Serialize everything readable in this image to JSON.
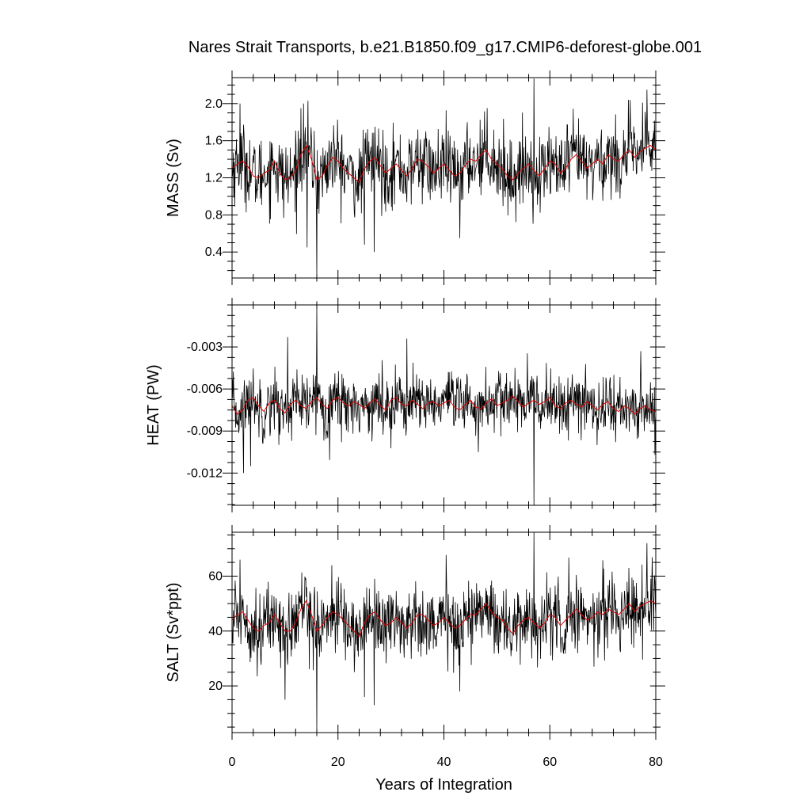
{
  "title": "Nares Strait Transports, b.e21.B1850.f09_g17.CMIP6-deforest-globe.001",
  "colors": {
    "raw": "#000000",
    "smooth": "#e00000",
    "axis": "#000000",
    "background": "#ffffff"
  },
  "chart_data": [
    {
      "type": "line",
      "id": "mass",
      "ylabel": "MASS (Sv)",
      "xlabel": "",
      "xlim": [
        0,
        80
      ],
      "ylim": [
        0.12,
        2.28
      ],
      "xticks": [
        0,
        20,
        40,
        60,
        80
      ],
      "xtick_labels": [
        "",
        "",
        "",
        "",
        ""
      ],
      "yticks": [
        0.4,
        0.8,
        1.2,
        1.6,
        2.0
      ],
      "ytick_labels": [
        "0.4",
        "0.8",
        "1.2",
        "1.6",
        "2.0"
      ],
      "grid": false,
      "series": [
        {
          "role": "monthly",
          "color": "#000000",
          "samples_per_year": 12,
          "x_start": 0,
          "x_end": 80,
          "mean": 1.33,
          "std": 0.24,
          "extremes": [
            [
              14.2,
              0.45
            ],
            [
              16.0,
              0.13
            ],
            [
              25.0,
              0.48
            ],
            [
              26.8,
              0.4
            ],
            [
              57.0,
              2.27
            ],
            [
              43.0,
              0.55
            ],
            [
              78.3,
              2.15
            ],
            [
              13.0,
              1.95
            ],
            [
              1.5,
              2.0
            ]
          ]
        },
        {
          "role": "annual-mean",
          "color": "#e00000",
          "x": [
            0,
            1,
            2,
            3,
            4,
            5,
            6,
            7,
            8,
            9,
            10,
            11,
            12,
            13,
            14,
            15,
            16,
            17,
            18,
            19,
            20,
            21,
            22,
            23,
            24,
            25,
            26,
            27,
            28,
            29,
            30,
            31,
            32,
            33,
            34,
            35,
            36,
            37,
            38,
            39,
            40,
            41,
            42,
            43,
            44,
            45,
            46,
            47,
            48,
            49,
            50,
            51,
            52,
            53,
            54,
            55,
            56,
            57,
            58,
            59,
            60,
            61,
            62,
            63,
            64,
            65,
            66,
            67,
            68,
            69,
            70,
            71,
            72,
            73,
            74,
            75,
            76,
            77,
            78,
            79,
            80
          ],
          "values": [
            1.3,
            1.35,
            1.38,
            1.32,
            1.22,
            1.2,
            1.25,
            1.28,
            1.38,
            1.25,
            1.18,
            1.2,
            1.28,
            1.45,
            1.55,
            1.4,
            1.18,
            1.22,
            1.33,
            1.42,
            1.38,
            1.3,
            1.25,
            1.2,
            1.15,
            1.3,
            1.38,
            1.42,
            1.33,
            1.25,
            1.3,
            1.35,
            1.28,
            1.22,
            1.3,
            1.4,
            1.38,
            1.32,
            1.25,
            1.3,
            1.35,
            1.28,
            1.22,
            1.25,
            1.33,
            1.4,
            1.38,
            1.45,
            1.5,
            1.4,
            1.35,
            1.3,
            1.22,
            1.18,
            1.25,
            1.3,
            1.35,
            1.28,
            1.22,
            1.3,
            1.38,
            1.35,
            1.25,
            1.3,
            1.4,
            1.45,
            1.38,
            1.3,
            1.35,
            1.4,
            1.35,
            1.45,
            1.4,
            1.38,
            1.45,
            1.5,
            1.42,
            1.48,
            1.52,
            1.55,
            1.5
          ]
        }
      ]
    },
    {
      "type": "line",
      "id": "heat",
      "ylabel": "HEAT (PW)",
      "xlabel": "",
      "xlim": [
        0,
        80
      ],
      "ylim": [
        -0.0143,
        0.0
      ],
      "xticks": [
        0,
        20,
        40,
        60,
        80
      ],
      "xtick_labels": [
        "",
        "",
        "",
        "",
        ""
      ],
      "yticks": [
        -0.012,
        -0.009,
        -0.006,
        -0.003
      ],
      "ytick_labels": [
        "-0.012",
        "-0.009",
        "-0.006",
        "-0.003"
      ],
      "grid": false,
      "series": [
        {
          "role": "monthly",
          "color": "#000000",
          "samples_per_year": 12,
          "x_start": 0,
          "x_end": 80,
          "mean": -0.0073,
          "std": 0.0013,
          "extremes": [
            [
              2.2,
              -0.012
            ],
            [
              3.5,
              -0.0115
            ],
            [
              16.0,
              0.0
            ],
            [
              57.0,
              -0.0143
            ],
            [
              10.5,
              -0.0023
            ],
            [
              33.0,
              -0.0024
            ],
            [
              77.2,
              -0.0033
            ],
            [
              46.5,
              -0.0105
            ]
          ]
        },
        {
          "role": "annual-mean",
          "color": "#e00000",
          "x": [
            0,
            1,
            2,
            3,
            4,
            5,
            6,
            7,
            8,
            9,
            10,
            11,
            12,
            13,
            14,
            15,
            16,
            17,
            18,
            19,
            20,
            21,
            22,
            23,
            24,
            25,
            26,
            27,
            28,
            29,
            30,
            31,
            32,
            33,
            34,
            35,
            36,
            37,
            38,
            39,
            40,
            41,
            42,
            43,
            44,
            45,
            46,
            47,
            48,
            49,
            50,
            51,
            52,
            53,
            54,
            55,
            56,
            57,
            58,
            59,
            60,
            61,
            62,
            63,
            64,
            65,
            66,
            67,
            68,
            69,
            70,
            71,
            72,
            73,
            74,
            75,
            76,
            77,
            78,
            79,
            80
          ],
          "values": [
            -0.0072,
            -0.0078,
            -0.0075,
            -0.0068,
            -0.0066,
            -0.0072,
            -0.0076,
            -0.007,
            -0.0068,
            -0.0074,
            -0.0077,
            -0.0071,
            -0.0068,
            -0.0072,
            -0.0074,
            -0.0069,
            -0.0066,
            -0.0071,
            -0.0074,
            -0.0068,
            -0.0066,
            -0.007,
            -0.0072,
            -0.0069,
            -0.0071,
            -0.0074,
            -0.007,
            -0.0067,
            -0.0072,
            -0.0075,
            -0.0068,
            -0.0066,
            -0.0071,
            -0.0072,
            -0.0068,
            -0.0071,
            -0.0074,
            -0.007,
            -0.0069,
            -0.0072,
            -0.007,
            -0.0068,
            -0.0073,
            -0.0075,
            -0.0071,
            -0.0068,
            -0.0073,
            -0.0074,
            -0.007,
            -0.0067,
            -0.0072,
            -0.007,
            -0.0068,
            -0.0065,
            -0.0069,
            -0.0073,
            -0.007,
            -0.0068,
            -0.0071,
            -0.0069,
            -0.0066,
            -0.0072,
            -0.0074,
            -0.007,
            -0.0068,
            -0.0071,
            -0.0073,
            -0.0069,
            -0.0072,
            -0.0075,
            -0.0071,
            -0.0069,
            -0.0074,
            -0.0076,
            -0.0072,
            -0.0074,
            -0.0078,
            -0.0074,
            -0.0072,
            -0.0075,
            -0.0076
          ]
        }
      ]
    },
    {
      "type": "line",
      "id": "salt",
      "ylabel": "SALT (Sv*ppt)",
      "xlabel": "Years of Integration",
      "xlim": [
        0,
        80
      ],
      "ylim": [
        3,
        76
      ],
      "xticks": [
        0,
        20,
        40,
        60,
        80
      ],
      "xtick_labels": [
        "0",
        "20",
        "40",
        "60",
        "80"
      ],
      "yticks": [
        20,
        40,
        60
      ],
      "ytick_labels": [
        "20",
        "40",
        "60"
      ],
      "grid": false,
      "series": [
        {
          "role": "monthly",
          "color": "#000000",
          "samples_per_year": 12,
          "x_start": 0,
          "x_end": 80,
          "mean": 44,
          "std": 8,
          "extremes": [
            [
              10.0,
              15
            ],
            [
              16.0,
              3
            ],
            [
              25.0,
              16
            ],
            [
              26.8,
              13
            ],
            [
              43.0,
              18
            ],
            [
              57.0,
              76
            ],
            [
              78.3,
              72
            ],
            [
              1.5,
              66
            ]
          ]
        },
        {
          "role": "annual-mean",
          "color": "#e00000",
          "x": [
            0,
            1,
            2,
            3,
            4,
            5,
            6,
            7,
            8,
            9,
            10,
            11,
            12,
            13,
            14,
            15,
            16,
            17,
            18,
            19,
            20,
            21,
            22,
            23,
            24,
            25,
            26,
            27,
            28,
            29,
            30,
            31,
            32,
            33,
            34,
            35,
            36,
            37,
            38,
            39,
            40,
            41,
            42,
            43,
            44,
            45,
            46,
            47,
            48,
            49,
            50,
            51,
            52,
            53,
            54,
            55,
            56,
            57,
            58,
            59,
            60,
            61,
            62,
            63,
            64,
            65,
            66,
            67,
            68,
            69,
            70,
            71,
            72,
            73,
            74,
            75,
            76,
            77,
            78,
            79,
            80
          ],
          "values": [
            44,
            46,
            47,
            44,
            41,
            40,
            42,
            43,
            46,
            43,
            40,
            40,
            43,
            48,
            51,
            46,
            40,
            42,
            45,
            47,
            46,
            44,
            42,
            40,
            38,
            43,
            46,
            47,
            44,
            42,
            43,
            45,
            43,
            41,
            43,
            46,
            46,
            44,
            42,
            43,
            45,
            43,
            41,
            42,
            44,
            46,
            46,
            48,
            50,
            47,
            45,
            44,
            41,
            39,
            42,
            44,
            45,
            43,
            41,
            43,
            46,
            45,
            42,
            44,
            46,
            48,
            46,
            44,
            45,
            47,
            46,
            48,
            47,
            46,
            48,
            50,
            47,
            49,
            50,
            51,
            50
          ]
        }
      ]
    }
  ]
}
